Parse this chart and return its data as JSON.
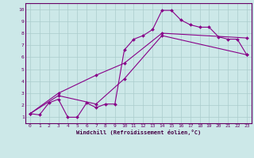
{
  "xlabel": "Windchill (Refroidissement éolien,°C)",
  "bg_color": "#cce8e8",
  "line_color": "#880088",
  "xlim": [
    -0.5,
    23.5
  ],
  "ylim": [
    0.5,
    10.5
  ],
  "xticks": [
    0,
    1,
    2,
    3,
    4,
    5,
    6,
    7,
    8,
    9,
    10,
    11,
    12,
    13,
    14,
    15,
    16,
    17,
    18,
    19,
    20,
    21,
    22,
    23
  ],
  "yticks": [
    1,
    2,
    3,
    4,
    5,
    6,
    7,
    8,
    9,
    10
  ],
  "grid_color": "#aacccc",
  "line1_x": [
    0,
    1,
    2,
    3,
    4,
    5,
    6,
    7,
    8,
    9,
    10,
    11,
    12,
    13,
    14,
    15,
    16,
    17,
    18,
    19,
    20,
    21,
    22,
    23
  ],
  "line1_y": [
    1.3,
    1.2,
    2.2,
    2.5,
    1.0,
    1.0,
    2.2,
    1.8,
    2.1,
    2.1,
    6.6,
    7.5,
    7.8,
    8.3,
    9.9,
    9.9,
    9.1,
    8.7,
    8.5,
    8.5,
    7.7,
    7.5,
    7.5,
    6.2
  ],
  "line2_x": [
    0,
    3,
    7,
    10,
    14,
    23
  ],
  "line2_y": [
    1.3,
    3.0,
    4.5,
    5.5,
    8.0,
    7.6
  ],
  "line3_x": [
    0,
    3,
    7,
    10,
    14,
    23
  ],
  "line3_y": [
    1.3,
    2.8,
    2.1,
    4.2,
    7.8,
    6.2
  ],
  "spine_color": "#660066",
  "tick_color": "#660066",
  "xlabel_color": "#440044",
  "xlabel_fontsize": 5.0,
  "tick_fontsize": 4.5
}
